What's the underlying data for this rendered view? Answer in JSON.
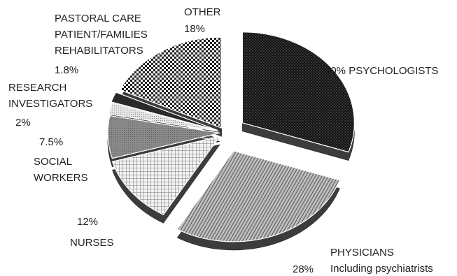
{
  "chart_data": {
    "type": "pie",
    "style": "exploded 3D pie, grayscale patterned slices",
    "slices": [
      {
        "key": "psychologists",
        "value": 30,
        "value_label": "30%",
        "label_lines": [
          "PSYCHOLOGISTS"
        ],
        "pattern": "dots-dark"
      },
      {
        "key": "physicians",
        "value": 28,
        "value_label": "28%",
        "label_lines": [
          "PHYSICIANS",
          "Including psychiatrists"
        ],
        "pattern": "diagonal-lines"
      },
      {
        "key": "nurses",
        "value": 12,
        "value_label": "12%",
        "label_lines": [
          "NURSES"
        ],
        "pattern": "grid"
      },
      {
        "key": "social-workers",
        "value": 7.5,
        "value_label": "7.5%",
        "label_lines": [
          "SOCIAL",
          "WORKERS"
        ],
        "pattern": "dense-gray"
      },
      {
        "key": "research-investigators",
        "value": 2,
        "value_label": "2%",
        "label_lines": [
          "RESEARCH",
          "INVESTIGATORS"
        ],
        "pattern": "light-dots"
      },
      {
        "key": "pastoral-care",
        "value": 1.8,
        "value_label": "1.8%",
        "label_lines": [
          "PASTORAL CARE",
          "PATIENT/FAMILIES",
          "REHABILITATORS"
        ],
        "pattern": "solid-dark"
      },
      {
        "key": "other",
        "value": 18,
        "value_label": "18%",
        "label_lines": [
          "OTHER"
        ],
        "pattern": "checker"
      }
    ],
    "colors": {
      "dark": "#1a1a1a",
      "mid": "#6e6e6e",
      "light": "#d9d9d9",
      "background": "#ffffff"
    }
  }
}
